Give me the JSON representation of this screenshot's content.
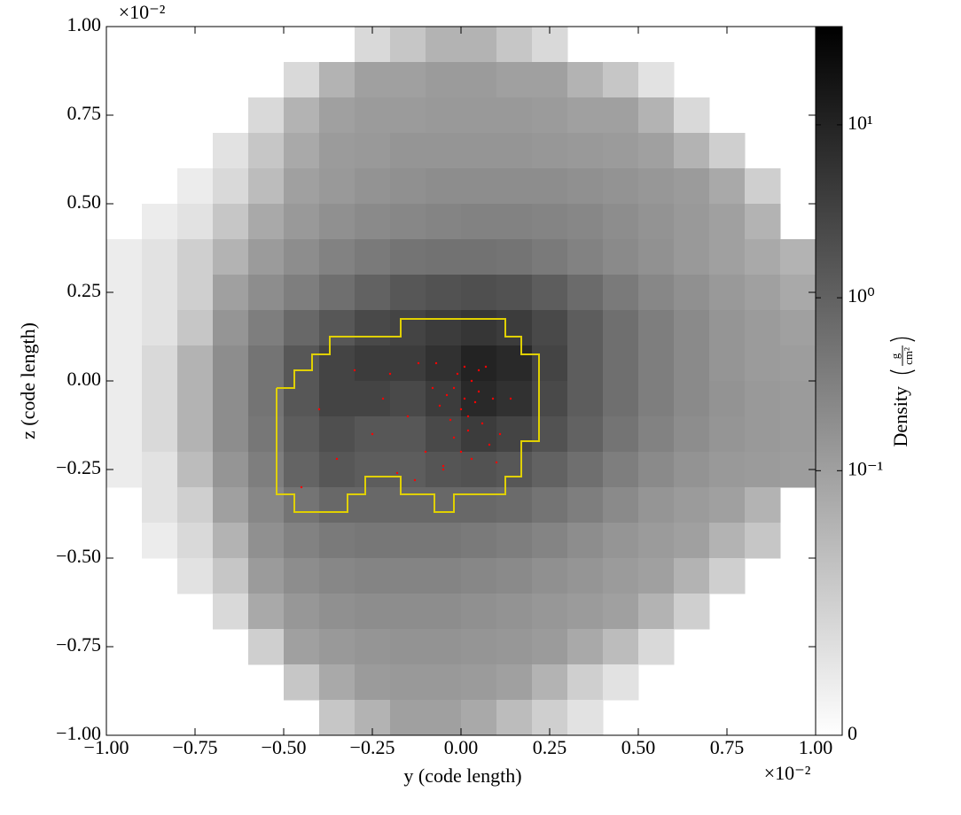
{
  "chart_data": {
    "type": "heatmap",
    "xlabel": "y  (code length)",
    "ylabel": "z  (code length)",
    "xlim": [
      -1,
      1
    ],
    "ylim": [
      -1,
      1
    ],
    "xticks": [
      {
        "value": -1,
        "label": "−1.00"
      },
      {
        "value": -0.75,
        "label": "−0.75"
      },
      {
        "value": -0.5,
        "label": "−0.50"
      },
      {
        "value": -0.25,
        "label": "−0.25"
      },
      {
        "value": 0,
        "label": "0.00"
      },
      {
        "value": 0.25,
        "label": "0.25"
      },
      {
        "value": 0.5,
        "label": "0.50"
      },
      {
        "value": 0.75,
        "label": "0.75"
      },
      {
        "value": 1,
        "label": "1.00"
      }
    ],
    "yticks": [
      {
        "value": -1,
        "label": "−1.00"
      },
      {
        "value": -0.75,
        "label": "−0.75"
      },
      {
        "value": -0.5,
        "label": "−0.50"
      },
      {
        "value": -0.25,
        "label": "−0.25"
      },
      {
        "value": 0,
        "label": "0.00"
      },
      {
        "value": 0.25,
        "label": "0.25"
      },
      {
        "value": 0.5,
        "label": "0.50"
      },
      {
        "value": 0.75,
        "label": "0.75"
      },
      {
        "value": 1,
        "label": "1.00"
      }
    ],
    "x_offset_label": "×10⁻²",
    "y_offset_label": "×10⁻²",
    "colormap": "gray_r",
    "color_scale": "symlog",
    "linthresh": 0.1,
    "linscale": 1.53,
    "clim": [
      0,
      37
    ],
    "cticks": [
      {
        "value": 0,
        "label": "0"
      },
      {
        "value": 0.1,
        "label": "10⁻¹"
      },
      {
        "value": 1,
        "label": "10⁰"
      },
      {
        "value": 10,
        "label": "10¹"
      }
    ],
    "colorbar_label": "Density",
    "colorbar_units": {
      "numerator": "g",
      "denominator": "cm²"
    },
    "values": [
      [
        null,
        null,
        null,
        null,
        null,
        null,
        null,
        0.04,
        0.06,
        0.08,
        0.08,
        0.06,
        0.04,
        null,
        null,
        null,
        null,
        null,
        null,
        null
      ],
      [
        null,
        null,
        null,
        null,
        null,
        0.04,
        0.08,
        0.1,
        0.1,
        0.12,
        0.12,
        0.1,
        0.1,
        0.08,
        0.06,
        0.03,
        null,
        null,
        null,
        null
      ],
      [
        null,
        null,
        null,
        null,
        0.04,
        0.08,
        0.1,
        0.12,
        0.12,
        0.13,
        0.13,
        0.13,
        0.12,
        0.1,
        0.1,
        0.08,
        0.04,
        null,
        null,
        null
      ],
      [
        null,
        null,
        null,
        0.03,
        0.06,
        0.09,
        0.12,
        0.13,
        0.15,
        0.15,
        0.15,
        0.15,
        0.14,
        0.13,
        0.12,
        0.1,
        0.08,
        0.05,
        null,
        null
      ],
      [
        null,
        null,
        0.02,
        0.04,
        0.07,
        0.1,
        0.13,
        0.16,
        0.18,
        0.2,
        0.2,
        0.2,
        0.2,
        0.18,
        0.16,
        0.14,
        0.12,
        0.09,
        0.05,
        null
      ],
      [
        null,
        0.02,
        0.03,
        0.06,
        0.09,
        0.13,
        0.18,
        0.22,
        0.25,
        0.28,
        0.3,
        0.3,
        0.28,
        0.25,
        0.2,
        0.16,
        0.13,
        0.1,
        0.08,
        null
      ],
      [
        0.02,
        0.03,
        0.05,
        0.08,
        0.12,
        0.2,
        0.3,
        0.4,
        0.5,
        0.55,
        0.55,
        0.5,
        0.4,
        0.3,
        0.22,
        0.17,
        0.13,
        0.1,
        0.09,
        0.08
      ],
      [
        0.02,
        0.03,
        0.05,
        0.1,
        0.2,
        0.35,
        0.6,
        1,
        1.5,
        1.8,
        2,
        1.8,
        1.2,
        0.7,
        0.4,
        0.25,
        0.18,
        0.13,
        0.1,
        0.09
      ],
      [
        0.02,
        0.03,
        0.06,
        0.15,
        0.35,
        0.8,
        1.5,
        2.5,
        3,
        4,
        5,
        4,
        2.5,
        1.2,
        0.6,
        0.35,
        0.22,
        0.15,
        0.12,
        0.1
      ],
      [
        0.02,
        0.04,
        0.08,
        0.2,
        0.5,
        1.5,
        3,
        4,
        4,
        6,
        10,
        8,
        3,
        1.2,
        0.6,
        0.35,
        0.22,
        0.15,
        0.12,
        0.11
      ],
      [
        0.02,
        0.04,
        0.08,
        0.2,
        0.5,
        1.5,
        3,
        3,
        2.5,
        4,
        8,
        6,
        2.5,
        1.2,
        0.6,
        0.35,
        0.22,
        0.16,
        0.13,
        0.12
      ],
      [
        0.02,
        0.04,
        0.08,
        0.2,
        0.45,
        1.2,
        2,
        1.5,
        1.5,
        2.5,
        4,
        3,
        1.8,
        1,
        0.5,
        0.3,
        0.2,
        0.15,
        0.13,
        0.12
      ],
      [
        0.02,
        0.03,
        0.07,
        0.15,
        0.35,
        0.9,
        1.5,
        1.2,
        1.2,
        1.6,
        1.8,
        1.5,
        1,
        0.6,
        0.35,
        0.22,
        0.16,
        0.13,
        0.12,
        0.11
      ],
      [
        null,
        0.03,
        0.05,
        0.1,
        0.25,
        0.5,
        0.8,
        0.8,
        0.8,
        0.8,
        0.8,
        0.7,
        0.5,
        0.35,
        0.22,
        0.15,
        0.12,
        0.1,
        0.08,
        null
      ],
      [
        null,
        0.02,
        0.04,
        0.08,
        0.18,
        0.3,
        0.4,
        0.45,
        0.45,
        0.45,
        0.4,
        0.35,
        0.28,
        0.2,
        0.15,
        0.12,
        0.1,
        0.08,
        0.06,
        null
      ],
      [
        null,
        null,
        0.03,
        0.06,
        0.12,
        0.2,
        0.25,
        0.28,
        0.28,
        0.28,
        0.25,
        0.22,
        0.18,
        0.15,
        0.12,
        0.1,
        0.08,
        0.05,
        null,
        null
      ],
      [
        null,
        null,
        null,
        0.04,
        0.09,
        0.14,
        0.18,
        0.2,
        0.2,
        0.2,
        0.18,
        0.16,
        0.14,
        0.12,
        0.1,
        0.08,
        0.05,
        null,
        null,
        null
      ],
      [
        null,
        null,
        null,
        null,
        0.05,
        0.1,
        0.13,
        0.15,
        0.16,
        0.16,
        0.15,
        0.14,
        0.12,
        0.09,
        0.07,
        0.04,
        null,
        null,
        null,
        null
      ],
      [
        null,
        null,
        null,
        null,
        null,
        0.06,
        0.09,
        0.12,
        0.13,
        0.13,
        0.12,
        0.1,
        0.08,
        0.05,
        0.03,
        null,
        null,
        null,
        null,
        null
      ],
      [
        null,
        null,
        null,
        null,
        null,
        null,
        0.06,
        0.08,
        0.1,
        0.1,
        0.09,
        0.07,
        0.05,
        0.03,
        null,
        null,
        null,
        null,
        null,
        null
      ]
    ],
    "contour": {
      "color": "#e0d000",
      "x": [
        -0.52,
        -0.52,
        -0.47,
        -0.47,
        -0.32,
        -0.32,
        -0.27,
        -0.27,
        -0.17,
        -0.17,
        -0.075,
        -0.075,
        -0.02,
        -0.02,
        0.125,
        0.125,
        0.17,
        0.17,
        0.22,
        0.22,
        0.17,
        0.17,
        0.125,
        0.125,
        -0.17,
        -0.17,
        -0.37,
        -0.37,
        -0.42,
        -0.42,
        -0.47,
        -0.47,
        -0.52
      ],
      "y": [
        -0.02,
        -0.32,
        -0.32,
        -0.37,
        -0.37,
        -0.32,
        -0.32,
        -0.27,
        -0.27,
        -0.32,
        -0.32,
        -0.37,
        -0.37,
        -0.32,
        -0.32,
        -0.27,
        -0.27,
        -0.17,
        -0.17,
        0.075,
        0.075,
        0.125,
        0.125,
        0.175,
        0.175,
        0.125,
        0.125,
        0.075,
        0.075,
        0.03,
        0.03,
        -0.02,
        -0.02
      ]
    },
    "particles": {
      "color": "#ff0000",
      "x": [
        -0.02,
        0.01,
        0.03,
        -0.04,
        0.0,
        0.02,
        -0.01,
        0.04,
        -0.03,
        0.01,
        0.05,
        -0.06,
        0.02,
        -0.02,
        0.06,
        0.0,
        -0.08,
        0.08,
        0.03,
        -0.05,
        -0.12,
        -0.15,
        -0.1,
        0.09,
        0.11,
        -0.07,
        0.07,
        -0.2,
        -0.3,
        -0.4,
        -0.45,
        -0.35,
        -0.25,
        -0.18,
        0.14,
        0.1,
        -0.13,
        -0.05,
        0.05,
        -0.22
      ],
      "y": [
        -0.02,
        -0.05,
        0.0,
        -0.04,
        -0.08,
        -0.1,
        0.02,
        -0.06,
        -0.11,
        0.04,
        -0.03,
        -0.07,
        -0.14,
        -0.16,
        -0.12,
        -0.2,
        -0.02,
        -0.18,
        -0.22,
        -0.25,
        0.05,
        -0.1,
        -0.2,
        -0.05,
        -0.15,
        0.05,
        0.04,
        0.02,
        0.03,
        -0.08,
        -0.3,
        -0.22,
        -0.15,
        -0.26,
        -0.05,
        -0.23,
        -0.28,
        -0.24,
        0.03,
        -0.05
      ]
    }
  }
}
